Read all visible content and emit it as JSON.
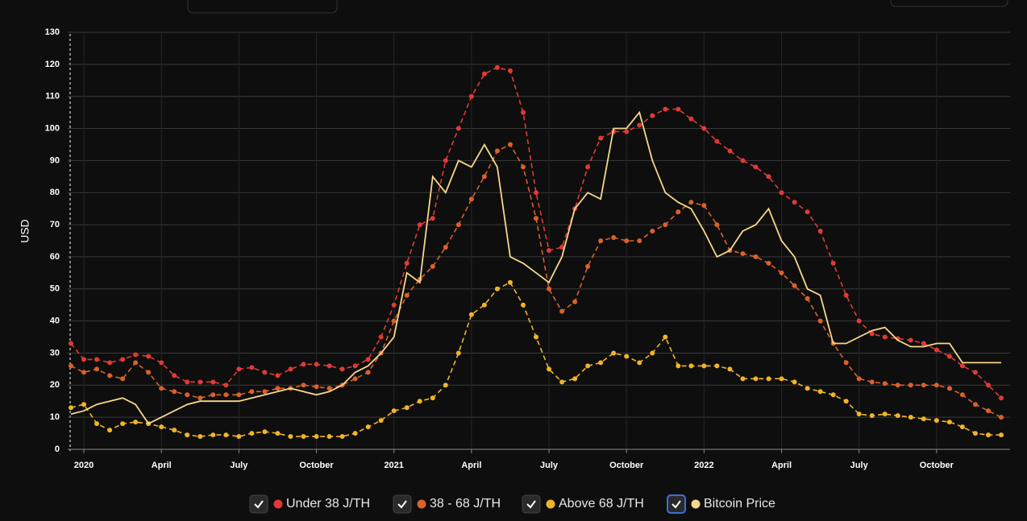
{
  "chart_data": {
    "type": "line",
    "y_label": "USD",
    "categories": [
      null,
      "2020",
      null,
      null,
      null,
      null,
      null,
      "April",
      null,
      null,
      null,
      null,
      null,
      "July",
      null,
      null,
      null,
      null,
      null,
      "October",
      null,
      null,
      null,
      null,
      null,
      "2021",
      null,
      null,
      null,
      null,
      null,
      "April",
      null,
      null,
      null,
      null,
      null,
      "July",
      null,
      null,
      null,
      null,
      null,
      "October",
      null,
      null,
      null,
      null,
      null,
      "2022",
      null,
      null,
      null,
      null,
      null,
      "April",
      null,
      null,
      null,
      null,
      null,
      "July",
      null,
      null,
      null,
      null,
      null,
      "October",
      null,
      null,
      null,
      null,
      null
    ],
    "series": [
      {
        "name": "Under 38 J/TH",
        "color": "#e03a36",
        "markers": true,
        "values": [
          33,
          28,
          28,
          27,
          28,
          29.5,
          29,
          27,
          23,
          21,
          21,
          21,
          20,
          25,
          25.5,
          24,
          23,
          25,
          26.5,
          26.5,
          26,
          25,
          26,
          28,
          35,
          45,
          58,
          70,
          72,
          90,
          100,
          110,
          117,
          119,
          118,
          105,
          80,
          62,
          63,
          75,
          88,
          97,
          99,
          99,
          101,
          104,
          106,
          106,
          103,
          100,
          96,
          93,
          90,
          88,
          85,
          80,
          77,
          74,
          68,
          58,
          48,
          40,
          36,
          35,
          34.5,
          34,
          33,
          31,
          29,
          26,
          24,
          20,
          16
        ]
      },
      {
        "name": "38 - 68 J/TH",
        "color": "#d9622b",
        "markers": true,
        "values": [
          26,
          24,
          25,
          23,
          22,
          27,
          24,
          19,
          18,
          17,
          16,
          17,
          17,
          17,
          18,
          18,
          19,
          19,
          20,
          19.5,
          19,
          20,
          22,
          24,
          30,
          40,
          48,
          53,
          57,
          63,
          70,
          78,
          85,
          93,
          95,
          88,
          72,
          50,
          43,
          46,
          57,
          65,
          66,
          65,
          65,
          68,
          70,
          74,
          77,
          76,
          70,
          62,
          61,
          60,
          58,
          55,
          51,
          47,
          40,
          33,
          27,
          22,
          21,
          20.5,
          20,
          20,
          20,
          20,
          19,
          17,
          14,
          12,
          10
        ]
      },
      {
        "name": "Above 68 J/TH",
        "color": "#f0b429",
        "markers": true,
        "values": [
          13,
          14,
          8,
          6,
          8,
          8.5,
          8,
          7,
          6,
          4.5,
          4,
          4.5,
          4.5,
          4,
          5,
          5.5,
          5,
          4,
          4,
          4,
          4,
          4,
          5,
          7,
          9,
          12,
          13,
          15,
          16,
          20,
          30,
          42,
          45,
          50,
          52,
          45,
          35,
          25,
          21,
          22,
          26,
          27,
          30,
          29,
          27,
          30,
          35,
          26,
          26,
          26,
          26,
          25,
          22,
          22,
          22,
          22,
          21,
          19,
          18,
          17,
          15,
          11,
          10.5,
          11,
          10.5,
          10,
          9.5,
          9,
          8.5,
          7,
          5,
          4.5,
          4.5
        ]
      },
      {
        "name": "Bitcoin Price",
        "color": "#f7d88a",
        "markers": false,
        "values": [
          11,
          12,
          14,
          15,
          16,
          14,
          8,
          10,
          12,
          14,
          15,
          15,
          15,
          15,
          16,
          17,
          18,
          19,
          18,
          17,
          18,
          20,
          24,
          26,
          30,
          35,
          55,
          52,
          85,
          80,
          90,
          88,
          95,
          88,
          60,
          58,
          55,
          52,
          60,
          75,
          80,
          78,
          100,
          100,
          105,
          90,
          80,
          77,
          75,
          68,
          60,
          62,
          68,
          70,
          75,
          65,
          60,
          50,
          48,
          33,
          33,
          35,
          37,
          38,
          34,
          32,
          32,
          33,
          33,
          27,
          27,
          27,
          27
        ]
      }
    ],
    "ylim": [
      0,
      130
    ],
    "yticks": [
      0,
      10,
      20,
      30,
      40,
      50,
      60,
      70,
      80,
      90,
      100,
      110,
      120,
      130
    ],
    "grid": true
  }
}
